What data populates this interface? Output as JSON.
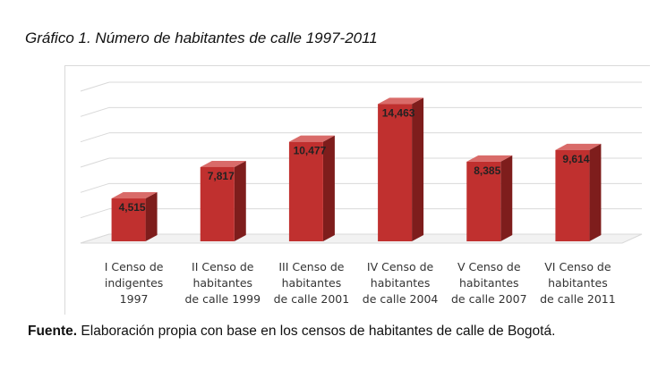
{
  "title": "Gráfico 1. Número de habitantes de calle 1997-2011",
  "source": {
    "label": "Fuente.",
    "text": " Elaboración propia con base en los censos de habitantes de calle de Bogotá."
  },
  "chart_data": {
    "type": "bar",
    "style": "3d-column",
    "bar_color": "#c0302f",
    "categories": [
      [
        "I Censo de",
        "indigentes",
        "1997"
      ],
      [
        "II Censo de",
        "habitantes",
        "de calle 1999"
      ],
      [
        "III Censo de",
        "habitantes",
        "de calle 2001"
      ],
      [
        "IV Censo de",
        "habitantes",
        "de calle 2004"
      ],
      [
        "V Censo de",
        "habitantes",
        "de calle 2007"
      ],
      [
        "VI Censo de",
        "habitantes",
        "de calle 2011"
      ]
    ],
    "values": [
      4515,
      7817,
      10477,
      14463,
      8385,
      9614
    ],
    "value_labels": [
      "4,515",
      "7,817",
      "10,477",
      "14,463",
      "8,385",
      "9,614"
    ],
    "ylim": [
      0,
      16000
    ],
    "grid": true,
    "xlabel": "",
    "ylabel": ""
  }
}
